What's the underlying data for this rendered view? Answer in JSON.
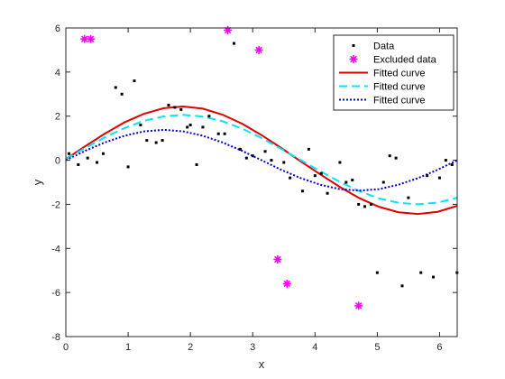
{
  "chart_data": {
    "type": "scatter",
    "xlabel": "x",
    "ylabel": "y",
    "xlim": [
      0,
      6.283
    ],
    "ylim": [
      -8,
      6
    ],
    "xticks": [
      0,
      1,
      2,
      3,
      4,
      5,
      6
    ],
    "yticks": [
      -8,
      -6,
      -4,
      -2,
      0,
      2,
      4,
      6
    ],
    "grid": false,
    "legend_position": "top-right",
    "series": [
      {
        "name": "Data",
        "kind": "points",
        "marker": "dot",
        "color": "#000000",
        "x": [
          0.05,
          0.2,
          0.35,
          0.5,
          0.6,
          0.8,
          0.9,
          1.0,
          1.1,
          1.2,
          1.3,
          1.45,
          1.55,
          1.65,
          1.75,
          1.85,
          1.95,
          2.0,
          2.1,
          2.2,
          2.3,
          2.45,
          2.55,
          2.7,
          2.8,
          2.9,
          3.0,
          3.2,
          3.3,
          3.5,
          3.6,
          3.8,
          3.9,
          4.0,
          4.1,
          4.2,
          4.4,
          4.5,
          4.6,
          4.7,
          4.8,
          4.9,
          5.0,
          5.1,
          5.2,
          5.3,
          5.4,
          5.5,
          5.7,
          5.8,
          5.9,
          6.0,
          6.1,
          6.2,
          6.28
        ],
        "y": [
          0.3,
          -0.2,
          0.1,
          -0.1,
          0.3,
          3.3,
          3.0,
          -0.3,
          3.6,
          1.6,
          0.9,
          0.8,
          0.9,
          2.5,
          2.4,
          2.3,
          1.5,
          1.6,
          -0.2,
          1.5,
          2.0,
          1.2,
          1.2,
          5.3,
          0.5,
          0.1,
          0.2,
          0.4,
          0.0,
          -0.1,
          -0.8,
          -1.4,
          0.5,
          -0.7,
          -0.6,
          -1.5,
          -0.1,
          -1.0,
          -0.9,
          -2.0,
          -2.1,
          -2.0,
          -5.1,
          -1.0,
          0.2,
          0.1,
          -5.7,
          -1.7,
          -5.1,
          -0.7,
          -5.3,
          -0.8,
          0.0,
          -0.2,
          -5.1
        ]
      },
      {
        "name": "Excluded data",
        "kind": "points",
        "marker": "asterisk",
        "color": "#ff00ff",
        "x": [
          0.3,
          0.4,
          2.6,
          3.1,
          3.4,
          3.55,
          4.7
        ],
        "y": [
          5.5,
          5.5,
          5.9,
          5.0,
          -4.5,
          -5.6,
          -6.6
        ]
      },
      {
        "name": "Fitted curve",
        "kind": "line",
        "style": "solid",
        "color": "#e00000",
        "x": [
          0,
          0.31416,
          0.62832,
          0.94248,
          1.25664,
          1.5708,
          1.88496,
          2.19911,
          2.51327,
          2.82743,
          3.14159,
          3.45575,
          3.76991,
          4.08407,
          4.39823,
          4.71239,
          5.02655,
          5.34071,
          5.65487,
          5.96903,
          6.28319
        ],
        "y": [
          0.05,
          0.64,
          1.21,
          1.72,
          2.11,
          2.36,
          2.44,
          2.34,
          2.07,
          1.66,
          1.14,
          0.56,
          -0.05,
          -0.64,
          -1.21,
          -1.72,
          -2.11,
          -2.36,
          -2.44,
          -2.34,
          -2.07
        ]
      },
      {
        "name": "Fitted curve",
        "kind": "line",
        "style": "dashed",
        "color": "#00e5ff",
        "x": [
          0,
          0.31416,
          0.62832,
          0.94248,
          1.25664,
          1.5708,
          1.88496,
          2.19911,
          2.51327,
          2.82743,
          3.14159,
          3.45575,
          3.76991,
          4.08407,
          4.39823,
          4.71239,
          5.02655,
          5.34071,
          5.65487,
          5.96903,
          6.28319
        ],
        "y": [
          0.05,
          0.56,
          1.04,
          1.46,
          1.79,
          1.99,
          2.06,
          1.98,
          1.77,
          1.44,
          1.01,
          0.52,
          0.01,
          -0.5,
          -0.98,
          -1.4,
          -1.73,
          -1.93,
          -2.0,
          -1.92,
          -1.7
        ]
      },
      {
        "name": "Fitted curve",
        "kind": "line",
        "style": "dotted",
        "color": "#0000cc",
        "x": [
          0,
          0.31416,
          0.62832,
          0.94248,
          1.25664,
          1.5708,
          1.88496,
          2.19911,
          2.51327,
          2.82743,
          3.14159,
          3.45575,
          3.76991,
          4.08407,
          4.39823,
          4.71239,
          5.02655,
          5.34071,
          5.65487,
          5.96903,
          6.28319
        ],
        "y": [
          0.0,
          0.43,
          0.81,
          1.11,
          1.31,
          1.38,
          1.31,
          1.11,
          0.81,
          0.43,
          0.0,
          -0.43,
          -0.81,
          -1.11,
          -1.31,
          -1.38,
          -1.31,
          -1.11,
          -0.81,
          -0.43,
          0.0
        ]
      }
    ]
  }
}
